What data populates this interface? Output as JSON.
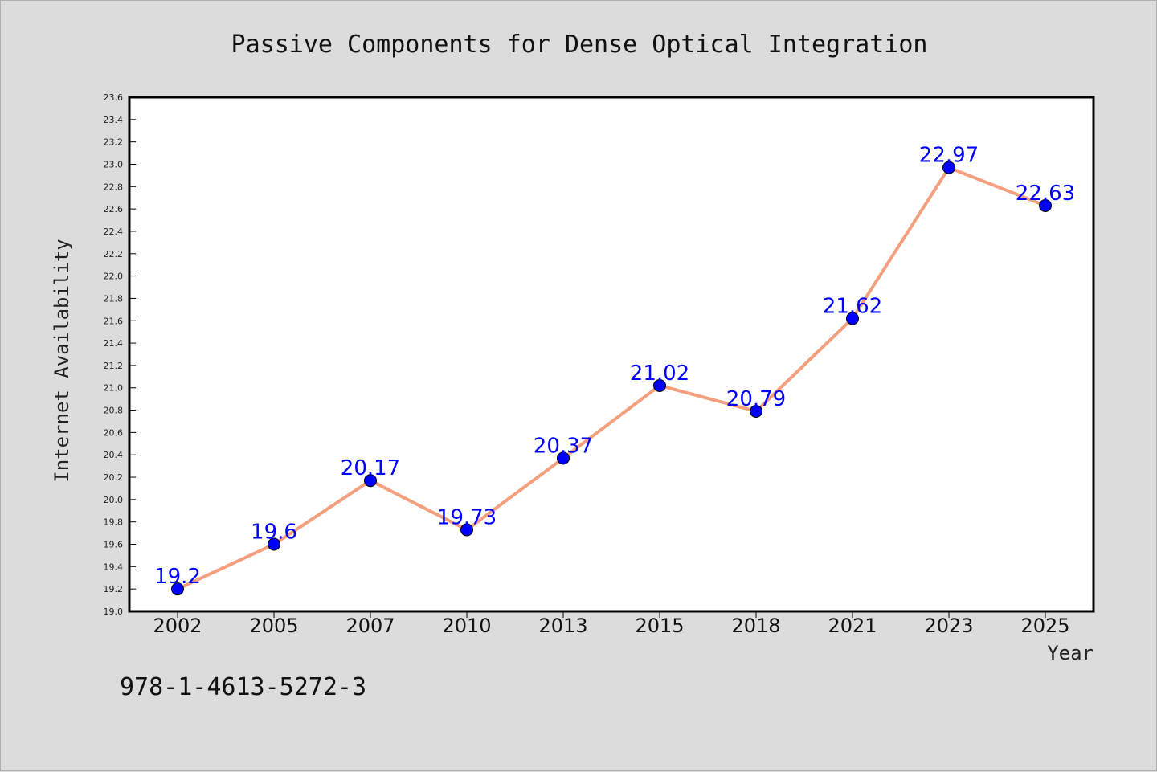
{
  "colors": {
    "page_bg": "#dcdcdc",
    "plot_bg": "#ffffff",
    "line": "#f4a07e",
    "marker": "#0000ff",
    "label": "#0000ff"
  },
  "footer": {
    "isbn": "978-1-4613-5272-3"
  },
  "chart_data": {
    "type": "line",
    "title": "Passive Components for Dense Optical Integration",
    "xlabel": "Year",
    "ylabel": "Internet Availability",
    "categories": [
      "2002",
      "2005",
      "2007",
      "2010",
      "2013",
      "2015",
      "2018",
      "2021",
      "2023",
      "2025"
    ],
    "series": [
      {
        "values": [
          19.2,
          19.6,
          20.17,
          19.73,
          20.37,
          21.02,
          20.79,
          21.62,
          22.97,
          22.63
        ],
        "labels": [
          "19.2",
          "19.6",
          "20.17",
          "19.73",
          "20.37",
          "21.02",
          "20.79",
          "21.62",
          "22.97",
          "22.63"
        ]
      }
    ],
    "ylim": [
      19.0,
      23.6
    ],
    "yticks": [
      "19.0",
      "19.2",
      "19.4",
      "19.6",
      "19.8",
      "20.0",
      "20.2",
      "20.4",
      "20.6",
      "20.8",
      "21.0",
      "21.2",
      "21.4",
      "21.6",
      "21.8",
      "22.0",
      "22.2",
      "22.4",
      "22.6",
      "22.8",
      "23.0",
      "23.2",
      "23.4",
      "23.6"
    ],
    "grid": false,
    "legend": "none"
  }
}
